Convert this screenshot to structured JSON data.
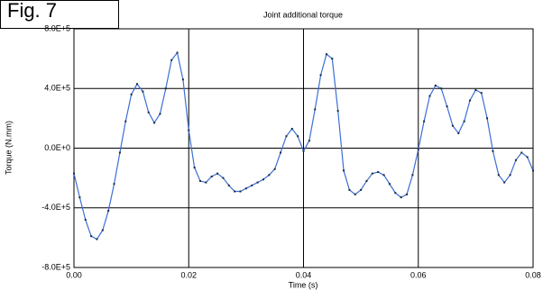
{
  "chart_data": {
    "type": "line",
    "figure_label": "Fig. 7",
    "title": "Joint additional torque",
    "xlabel": "Time (s)",
    "ylabel": "Torque (N.mm)",
    "xlim": [
      0,
      0.08
    ],
    "ylim": [
      -800000,
      800000
    ],
    "xticks": [
      {
        "value": 0,
        "label": "0.00"
      },
      0.02,
      0.04,
      0.06,
      0.08
    ],
    "yticks": [
      {
        "value": -800000,
        "label": "-8.0E+5"
      },
      {
        "value": -400000,
        "label": "-4.0E+5"
      },
      {
        "value": 0,
        "label": "0.0E+0"
      },
      {
        "value": 400000,
        "label": "4.0E+5"
      },
      {
        "value": 800000,
        "label": "8.0E+5"
      }
    ],
    "grid": true,
    "x": [
      0,
      0.001,
      0.002,
      0.003,
      0.004,
      0.005,
      0.006,
      0.007,
      0.008,
      0.009,
      0.01,
      0.011,
      0.012,
      0.013,
      0.014,
      0.015,
      0.016,
      0.017,
      0.018,
      0.019,
      0.02,
      0.021,
      0.022,
      0.023,
      0.024,
      0.025,
      0.026,
      0.027,
      0.028,
      0.029,
      0.03,
      0.031,
      0.032,
      0.033,
      0.034,
      0.035,
      0.036,
      0.037,
      0.038,
      0.039,
      0.04,
      0.041,
      0.042,
      0.043,
      0.044,
      0.045,
      0.046,
      0.047,
      0.048,
      0.049,
      0.05,
      0.051,
      0.052,
      0.053,
      0.054,
      0.055,
      0.056,
      0.057,
      0.058,
      0.059,
      0.06,
      0.061,
      0.062,
      0.063,
      0.064,
      0.065,
      0.066,
      0.067,
      0.068,
      0.069,
      0.07,
      0.071,
      0.072,
      0.073,
      0.074,
      0.075,
      0.076,
      0.077,
      0.078,
      0.079,
      0.08
    ],
    "series": [
      {
        "color": "#3c6fd6",
        "marker_color": "#1a2a3a",
        "values": [
          -170000,
          -330000,
          -480000,
          -590000,
          -610000,
          -550000,
          -420000,
          -240000,
          -30000,
          180000,
          360000,
          430000,
          380000,
          240000,
          170000,
          230000,
          400000,
          590000,
          640000,
          460000,
          120000,
          -130000,
          -220000,
          -230000,
          -190000,
          -170000,
          -200000,
          -250000,
          -290000,
          -290000,
          -270000,
          -250000,
          -230000,
          -210000,
          -180000,
          -140000,
          -30000,
          80000,
          130000,
          80000,
          -20000,
          50000,
          260000,
          490000,
          630000,
          600000,
          250000,
          -150000,
          -280000,
          -310000,
          -280000,
          -220000,
          -170000,
          -160000,
          -180000,
          -240000,
          -300000,
          -330000,
          -310000,
          -180000,
          -10000,
          180000,
          350000,
          420000,
          400000,
          280000,
          150000,
          100000,
          180000,
          320000,
          390000,
          370000,
          200000,
          -20000,
          -180000,
          -230000,
          -180000,
          -80000,
          -30000,
          -60000,
          -150000
        ]
      }
    ]
  }
}
